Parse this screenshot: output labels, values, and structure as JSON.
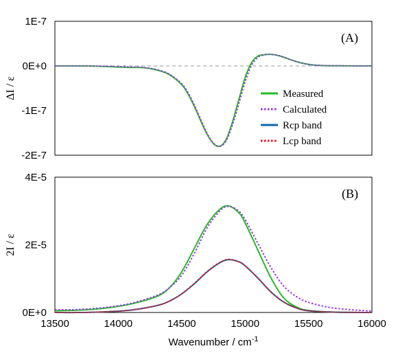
{
  "chart_data": [
    {
      "type": "line",
      "panel_label": "(A)",
      "xlim": [
        13500,
        16000
      ],
      "ylim": [
        -2e-07,
        1e-07
      ],
      "yticks": [
        "1E-7",
        "0E+0",
        "-1E-7",
        "-2E-7"
      ],
      "ylabel": "ΔI / ε",
      "legend": {
        "position": "right-center",
        "entries": [
          {
            "label": "Measured",
            "color": "#22bb22",
            "style": "solid"
          },
          {
            "label": "Calculated",
            "color": "#9933ee",
            "style": "dotted"
          },
          {
            "label": "Rcp band",
            "color": "#1166aa",
            "style": "solid"
          },
          {
            "label": "Lcp band",
            "color": "#ee1111",
            "style": "dotted"
          }
        ]
      },
      "series": [
        {
          "name": "Measured",
          "color": "#22bb22",
          "x": [
            13500,
            13800,
            14000,
            14100,
            14200,
            14300,
            14400,
            14500,
            14550,
            14600,
            14650,
            14700,
            14750,
            14800,
            14850,
            14900,
            14950,
            15000,
            15050,
            15100,
            15150,
            15200,
            15250,
            15300,
            15400,
            15500,
            15600,
            15800,
            16000
          ],
          "y": [
            0,
            -3e-10,
            -2.5e-09,
            -3.5e-09,
            -4e-09,
            -9e-09,
            -1.9e-08,
            -4.2e-08,
            -6.3e-08,
            -9.1e-08,
            -1.23e-07,
            -1.53e-07,
            -1.74e-07,
            -1.8e-07,
            -1.65e-07,
            -1.26e-07,
            -7.6e-08,
            -2.6e-08,
            7e-09,
            2.2e-08,
            2.5e-08,
            2.6e-08,
            2.4e-08,
            2e-08,
            1e-08,
            3.5e-09,
            1e-09,
            2e-10,
            0
          ]
        },
        {
          "name": "Calculated",
          "color": "#9933ee",
          "x": [
            13500,
            13800,
            14000,
            14100,
            14200,
            14300,
            14400,
            14500,
            14550,
            14600,
            14650,
            14700,
            14750,
            14800,
            14850,
            14900,
            14950,
            15000,
            15050,
            15100,
            15150,
            15200,
            15250,
            15300,
            15400,
            15500,
            15600,
            15800,
            16000
          ],
          "y": [
            0,
            -2e-10,
            -1.5e-09,
            -2.5e-09,
            -3.5e-09,
            -8e-09,
            -1.8e-08,
            -4e-08,
            -6e-08,
            -8.8e-08,
            -1.2e-07,
            -1.51e-07,
            -1.73e-07,
            -1.8e-07,
            -1.68e-07,
            -1.32e-07,
            -8.5e-08,
            -3.6e-08,
            1e-09,
            1.9e-08,
            2.5e-08,
            2.6e-08,
            2.4e-08,
            2e-08,
            1e-08,
            3.5e-09,
            1e-09,
            2e-10,
            0
          ]
        }
      ],
      "baseline": {
        "y": 0,
        "color": "#aaaaaa",
        "style": "dashed"
      }
    },
    {
      "type": "line",
      "panel_label": "(B)",
      "xlim": [
        13500,
        16000
      ],
      "ylim": [
        0,
        4e-05
      ],
      "yticks": [
        "4E-5",
        "2E-5",
        "0E+0"
      ],
      "xticks": [
        "13500",
        "14000",
        "14500",
        "15000",
        "15500",
        "16000"
      ],
      "ylabel": "2I / ε",
      "xlabel": "Wavenumber / cm",
      "xlabel_sup": "-1",
      "series": [
        {
          "name": "Measured",
          "color": "#22bb22",
          "x": [
            13500,
            13700,
            13900,
            14100,
            14300,
            14400,
            14500,
            14600,
            14700,
            14800,
            14870,
            14950,
            15000,
            15100,
            15200,
            15300,
            15400,
            15500,
            15700,
            16000
          ],
          "y": [
            5e-07,
            7e-07,
            1.3e-06,
            2.5e-06,
            4.7e-06,
            7.2e-06,
            1.2e-05,
            1.9e-05,
            2.6e-05,
            3.05e-05,
            3.15e-05,
            2.95e-05,
            2.65e-05,
            1.85e-05,
            1.05e-05,
            4.5e-06,
            1.7e-06,
            6e-07,
            1e-07,
            0.0
          ]
        },
        {
          "name": "Calculated",
          "color": "#9933ee",
          "x": [
            13500,
            13700,
            13900,
            14100,
            14300,
            14400,
            14500,
            14600,
            14700,
            14800,
            14870,
            14950,
            15000,
            15100,
            15200,
            15300,
            15400,
            15500,
            15700,
            16000
          ],
          "y": [
            8e-07,
            9e-07,
            1.5e-06,
            2.7e-06,
            5e-06,
            7.2e-06,
            1.1e-05,
            1.75e-05,
            2.5e-05,
            3e-05,
            3.14e-05,
            3e-05,
            2.75e-05,
            2.05e-05,
            1.35e-05,
            8e-06,
            4.8e-06,
            3e-06,
            1.3e-06,
            4e-07
          ]
        },
        {
          "name": "Rcp band",
          "color": "#1166aa",
          "x": [
            13500,
            13700,
            13900,
            14100,
            14300,
            14400,
            14500,
            14600,
            14700,
            14800,
            14870,
            14950,
            15000,
            15100,
            15200,
            15300,
            15400,
            15500,
            15700,
            16000
          ],
          "y": [
            0.0,
            0.0,
            2e-07,
            7e-07,
            2e-06,
            3.3e-06,
            5.5e-06,
            8.5e-06,
            1.2e-05,
            1.47e-05,
            1.56e-05,
            1.5e-05,
            1.38e-05,
            1.02e-05,
            6.2e-06,
            3.2e-06,
            1.4e-06,
            5e-07,
            1e-07,
            0.0
          ]
        },
        {
          "name": "Lcp band",
          "color": "#ee1111",
          "x": [
            13500,
            13700,
            13900,
            14100,
            14300,
            14400,
            14500,
            14600,
            14700,
            14800,
            14870,
            14950,
            15000,
            15100,
            15200,
            15300,
            15400,
            15500,
            15700,
            16000
          ],
          "y": [
            0.0,
            0.0,
            2e-07,
            7e-07,
            2e-06,
            3.3e-06,
            5.5e-06,
            8.6e-06,
            1.21e-05,
            1.48e-05,
            1.57e-05,
            1.5e-05,
            1.38e-05,
            1.02e-05,
            6.2e-06,
            3.2e-06,
            1.4e-06,
            5e-07,
            1e-07,
            0.0
          ]
        }
      ]
    }
  ]
}
